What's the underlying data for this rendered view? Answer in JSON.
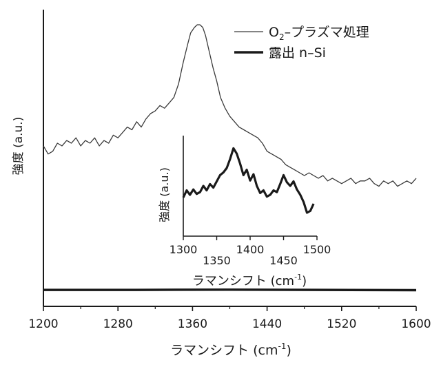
{
  "chart_data": [
    {
      "type": "line",
      "xlabel": "ラマンシフト (cm",
      "xlabel_sup": "-1",
      "xlabel_close": ")",
      "ylabel": "強度 (a.u.)",
      "xlim": [
        1200,
        1600
      ],
      "ylim": [
        0,
        1
      ],
      "xticks": [
        1200,
        1280,
        1360,
        1440,
        1520,
        1600
      ],
      "yticks_shown": false,
      "grid": false,
      "legend_position": "top-right",
      "series": [
        {
          "name_main": "O",
          "name_sub": "2",
          "name_rest": "–プラズマ処理",
          "name": "O2–プラズマ処理",
          "color": "#3a3a3a",
          "line": "thin",
          "x": [
            1200,
            1205,
            1210,
            1215,
            1220,
            1225,
            1230,
            1235,
            1240,
            1245,
            1250,
            1255,
            1260,
            1265,
            1270,
            1275,
            1280,
            1285,
            1290,
            1295,
            1300,
            1305,
            1310,
            1315,
            1320,
            1325,
            1330,
            1335,
            1340,
            1345,
            1350,
            1355,
            1358,
            1362,
            1365,
            1368,
            1371,
            1374,
            1378,
            1382,
            1386,
            1390,
            1395,
            1400,
            1405,
            1410,
            1415,
            1420,
            1425,
            1430,
            1435,
            1440,
            1445,
            1450,
            1455,
            1460,
            1465,
            1470,
            1475,
            1480,
            1485,
            1490,
            1495,
            1500,
            1505,
            1510,
            1515,
            1520,
            1525,
            1530,
            1535,
            1540,
            1545,
            1550,
            1555,
            1560,
            1565,
            1570,
            1575,
            1580,
            1585,
            1590,
            1595,
            1600
          ],
          "y": [
            0.55,
            0.52,
            0.53,
            0.56,
            0.55,
            0.57,
            0.56,
            0.58,
            0.55,
            0.57,
            0.56,
            0.58,
            0.55,
            0.57,
            0.56,
            0.59,
            0.58,
            0.6,
            0.62,
            0.61,
            0.64,
            0.62,
            0.65,
            0.67,
            0.68,
            0.7,
            0.69,
            0.71,
            0.73,
            0.78,
            0.86,
            0.93,
            0.97,
            0.99,
            1.0,
            1.0,
            0.99,
            0.96,
            0.9,
            0.84,
            0.79,
            0.73,
            0.69,
            0.66,
            0.64,
            0.62,
            0.61,
            0.6,
            0.59,
            0.58,
            0.56,
            0.53,
            0.52,
            0.51,
            0.5,
            0.48,
            0.47,
            0.46,
            0.45,
            0.44,
            0.45,
            0.44,
            0.43,
            0.44,
            0.42,
            0.43,
            0.42,
            0.41,
            0.42,
            0.43,
            0.41,
            0.42,
            0.42,
            0.43,
            0.41,
            0.4,
            0.42,
            0.41,
            0.42,
            0.4,
            0.41,
            0.42,
            0.41,
            0.43
          ]
        },
        {
          "name": "露出 n–Si",
          "color": "#1a1a1a",
          "line": "thick",
          "x": [
            1200,
            1300,
            1400,
            1500,
            1600
          ],
          "y": [
            0.015,
            0.015,
            0.016,
            0.015,
            0.014
          ]
        }
      ]
    },
    {
      "type": "line",
      "inset": true,
      "xlabel": "ラマンシフト (cm",
      "xlabel_sup": "-1",
      "xlabel_close": ")",
      "ylabel": "強度 (a.u.)",
      "xlim": [
        1300,
        1500
      ],
      "xticks": [
        1300,
        1350,
        1400,
        1450,
        1500
      ],
      "series": [
        {
          "name": "露出 n–Si",
          "color": "#1a1a1a",
          "x": [
            1300,
            1305,
            1310,
            1315,
            1320,
            1325,
            1330,
            1335,
            1340,
            1345,
            1350,
            1355,
            1360,
            1365,
            1370,
            1375,
            1380,
            1385,
            1390,
            1395,
            1400,
            1405,
            1410,
            1415,
            1420,
            1425,
            1430,
            1435,
            1440,
            1445,
            1450,
            1455,
            1460,
            1465,
            1470,
            1475,
            1480,
            1485,
            1490,
            1495
          ],
          "y": [
            0.37,
            0.45,
            0.4,
            0.46,
            0.41,
            0.43,
            0.5,
            0.45,
            0.52,
            0.48,
            0.55,
            0.62,
            0.65,
            0.7,
            0.8,
            0.92,
            0.86,
            0.75,
            0.62,
            0.68,
            0.56,
            0.63,
            0.5,
            0.42,
            0.45,
            0.38,
            0.4,
            0.45,
            0.43,
            0.52,
            0.62,
            0.54,
            0.5,
            0.55,
            0.46,
            0.4,
            0.32,
            0.2,
            0.22,
            0.3
          ]
        }
      ]
    }
  ]
}
